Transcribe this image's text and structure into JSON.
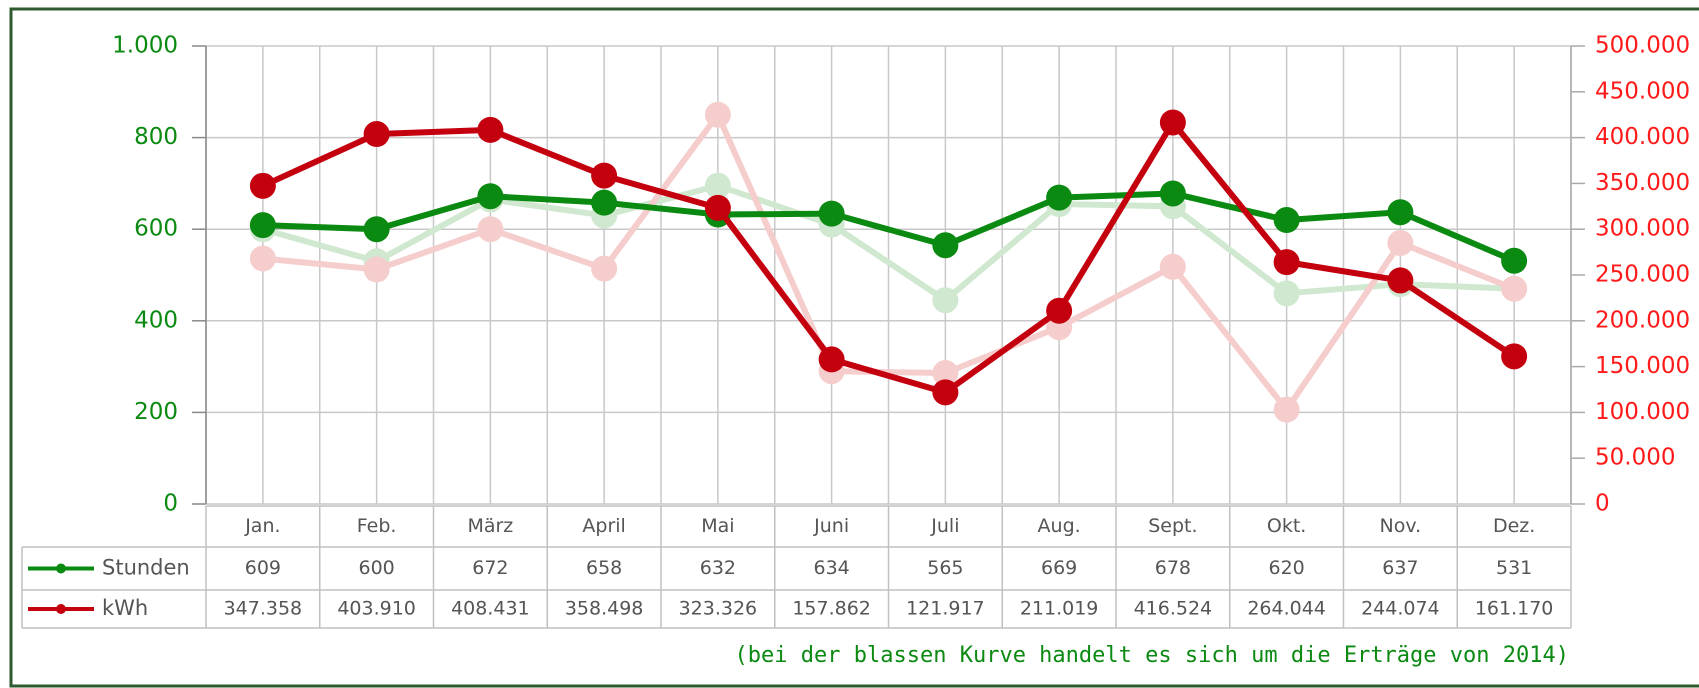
{
  "chart_data": {
    "type": "line",
    "categories": [
      "Jan.",
      "Feb.",
      "März",
      "April",
      "Mai",
      "Juni",
      "Juli",
      "Aug.",
      "Sept.",
      "Okt.",
      "Nov.",
      "Dez."
    ],
    "series": [
      {
        "color": "#cfe8cf",
        "values": [
          600,
          530,
          665,
          630,
          695,
          610,
          445,
          655,
          650,
          460,
          480,
          470
        ]
      },
      {
        "color": "#f6cdcd",
        "axis": "y2",
        "values": [
          268000,
          256000,
          300000,
          257000,
          425000,
          145000,
          143000,
          193000,
          259000,
          103000,
          285000,
          235000
        ]
      },
      {
        "name": "Stunden",
        "color": "#0b8a12",
        "values": [
          609,
          600,
          672,
          658,
          632,
          634,
          565,
          669,
          678,
          620,
          637,
          531
        ]
      },
      {
        "name": "kWh",
        "color": "#c4000e",
        "axis": "y2",
        "values": [
          347358,
          403910,
          408431,
          358498,
          323326,
          157862,
          121917,
          211019,
          416524,
          264044,
          244074,
          161170
        ],
        "value_labels": [
          "347.358",
          "403.910",
          "408.431",
          "358.498",
          "323.326",
          "157.862",
          "121.917",
          "211.019",
          "416.524",
          "264.044",
          "244.074",
          "161.170"
        ]
      }
    ],
    "ylim": [
      0,
      1000
    ],
    "yticks": [
      0,
      200,
      400,
      600,
      800,
      {
        "value": 1000,
        "label": "1.000"
      }
    ],
    "y2lim": [
      0,
      500000
    ],
    "y2ticks": [
      0,
      {
        "value": 50000,
        "label": "50.000"
      },
      {
        "value": 100000,
        "label": "100.000"
      },
      {
        "value": 150000,
        "label": "150.000"
      },
      {
        "value": 200000,
        "label": "200.000"
      },
      {
        "value": 250000,
        "label": "250.000"
      },
      {
        "value": 300000,
        "label": "300.000"
      },
      {
        "value": 350000,
        "label": "350.000"
      },
      {
        "value": 400000,
        "label": "400.000"
      },
      {
        "value": 450000,
        "label": "450.000"
      },
      {
        "value": 500000,
        "label": "500.000"
      }
    ],
    "grid": true,
    "ytick_color": "#0b8a12",
    "y2tick_color": "#ff1a1a",
    "annotation": "(bei der blassen Kurve handelt es sich um die Erträge von 2014)"
  }
}
